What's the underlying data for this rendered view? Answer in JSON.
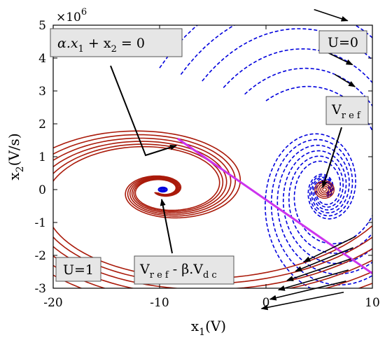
{
  "chart_data": {
    "type": "line",
    "title": "",
    "xlabel": {
      "main": "x",
      "sub": "1",
      "unit": "(V)"
    },
    "ylabel": {
      "main": "x",
      "sub": "2",
      "unit": "(V/s)"
    },
    "y_scale_label": {
      "base": "×10",
      "exp": "6"
    },
    "xlim": [
      -20,
      10
    ],
    "ylim": [
      -3,
      5
    ],
    "x_ticks": [
      "-20",
      "-10",
      "0",
      "10"
    ],
    "y_ticks": [
      "-3",
      "-2",
      "-1",
      "0",
      "1",
      "2",
      "3",
      "4",
      "5"
    ],
    "grid": false,
    "colors": {
      "u0_trajectories": "#0000dd",
      "u1_trajectories": "#aa1a0a",
      "switching_line": "#cc33ee",
      "arrows": "#000000"
    },
    "switching_line": {
      "x": [
        -8.3,
        10
      ],
      "y": [
        1.55,
        -2.55
      ]
    },
    "u0_trajectories": {
      "equilibrium": [
        5.5,
        0
      ],
      "start_x": [
        -10,
        -8,
        -6,
        -4,
        -2,
        0
      ],
      "start_y": [
        3.7,
        3.5,
        3.3,
        3.1,
        2.9,
        2.7
      ],
      "style": "dashed"
    },
    "u1_trajectories": {
      "equilibrium": [
        -9.7,
        0
      ],
      "start_x": [
        10,
        10,
        10,
        10,
        10,
        10
      ],
      "start_y": [
        -1.1,
        -1.45,
        -1.8,
        -2.15,
        -2.5,
        -2.85
      ],
      "style": "solid"
    },
    "annotations": {
      "switching_line_label": {
        "a": "α.x",
        "a_sub": "1",
        "b": " + x",
        "b_sub": "2",
        "c": " = 0"
      },
      "u0_label": "U=0",
      "u1_label": "U=1",
      "vref_label": {
        "main": "V",
        "sub": "r e f"
      },
      "vref_beta_label": {
        "main": "V",
        "sub1": "r e f",
        "mid": " - β.V",
        "sub2": "d c"
      }
    }
  }
}
